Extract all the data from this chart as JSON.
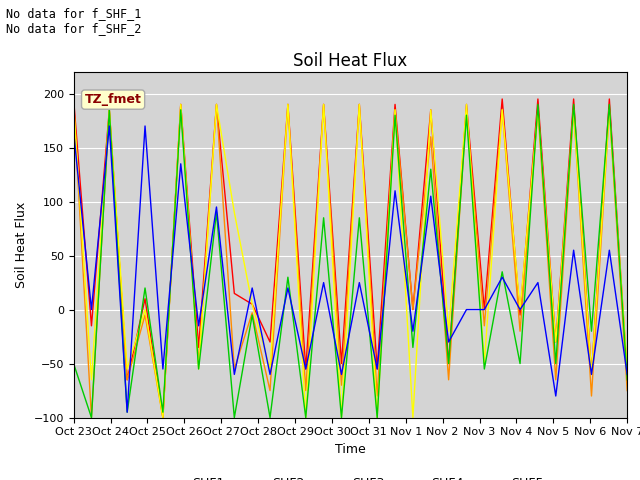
{
  "title": "Soil Heat Flux",
  "ylabel": "Soil Heat Flux",
  "xlabel": "Time",
  "xlim_labels": [
    "Oct 23",
    "Oct 24",
    "Oct 25",
    "Oct 26",
    "Oct 27",
    "Oct 28",
    "Oct 29",
    "Oct 30",
    "Oct 31",
    "Nov 1",
    "Nov 2",
    "Nov 3",
    "Nov 4",
    "Nov 5",
    "Nov 6",
    "Nov 7"
  ],
  "ylim": [
    -100,
    220
  ],
  "yticks": [
    -100,
    -50,
    0,
    50,
    100,
    150,
    200
  ],
  "bg_color": "#d4d4d4",
  "text_annotations": [
    "No data for f_SHF_1",
    "No data for f_SHF_2"
  ],
  "legend_label": "TZ_fmet",
  "series": {
    "SHF1": {
      "color": "#ff0000",
      "values": [
        195,
        -15,
        185,
        -65,
        10,
        -100,
        190,
        -35,
        190,
        15,
        5,
        -30,
        190,
        -55,
        190,
        -50,
        190,
        -55,
        190,
        0,
        185,
        -50,
        190,
        0,
        195,
        -5,
        195,
        -30,
        195,
        -60,
        195,
        -60
      ]
    },
    "SHF2": {
      "color": "#ff8c00",
      "values": [
        190,
        -100,
        185,
        -65,
        -5,
        -100,
        190,
        -50,
        190,
        -55,
        -3,
        -75,
        190,
        -75,
        190,
        -70,
        190,
        -80,
        185,
        0,
        160,
        -65,
        185,
        -15,
        185,
        -20,
        185,
        -65,
        185,
        -80,
        185,
        -75
      ]
    },
    "SHF3": {
      "color": "#ffff00",
      "values": [
        190,
        -65,
        185,
        -55,
        0,
        -100,
        190,
        -55,
        190,
        90,
        5,
        -55,
        190,
        -100,
        190,
        -100,
        190,
        -100,
        185,
        -100,
        185,
        -20,
        190,
        -50,
        185,
        0,
        185,
        -30,
        185,
        -60,
        185,
        -55
      ]
    },
    "SHF4": {
      "color": "#00cc00",
      "values": [
        -50,
        -100,
        185,
        -95,
        20,
        -95,
        185,
        -55,
        90,
        -100,
        -5,
        -100,
        30,
        -100,
        85,
        -100,
        85,
        -100,
        180,
        -35,
        130,
        -50,
        180,
        -55,
        35,
        -50,
        190,
        -50,
        190,
        -20,
        190,
        -65
      ]
    },
    "SHF5": {
      "color": "#0000ff",
      "values": [
        165,
        0,
        170,
        -95,
        170,
        -55,
        135,
        -15,
        95,
        -60,
        20,
        -60,
        20,
        -55,
        25,
        -60,
        25,
        -55,
        110,
        -20,
        105,
        -30,
        0,
        0,
        30,
        0,
        25,
        -80,
        55,
        -60,
        55,
        -60
      ]
    }
  }
}
